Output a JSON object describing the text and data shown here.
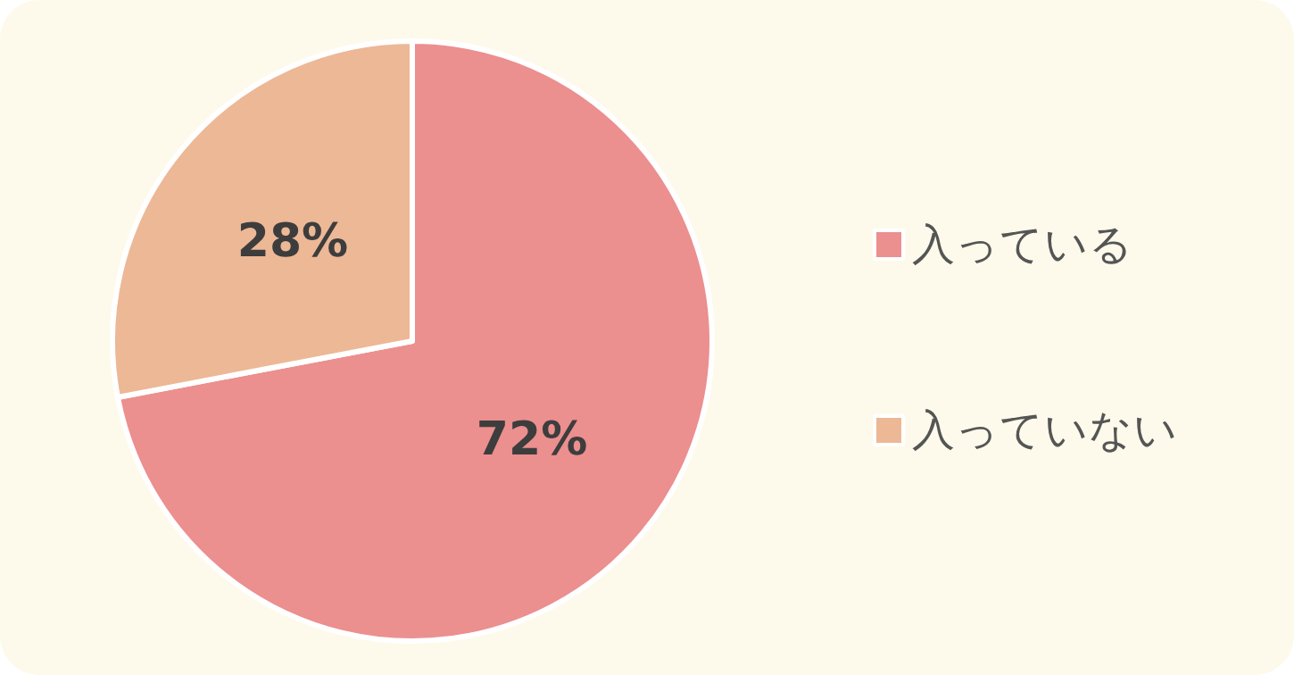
{
  "chart_data": {
    "type": "pie",
    "categories": [
      "入っている",
      "入っていない"
    ],
    "values": [
      72,
      28
    ],
    "colors": [
      "#ec8f8f",
      "#edb896"
    ],
    "value_labels": [
      "72%",
      "28%"
    ],
    "legend": "right"
  }
}
